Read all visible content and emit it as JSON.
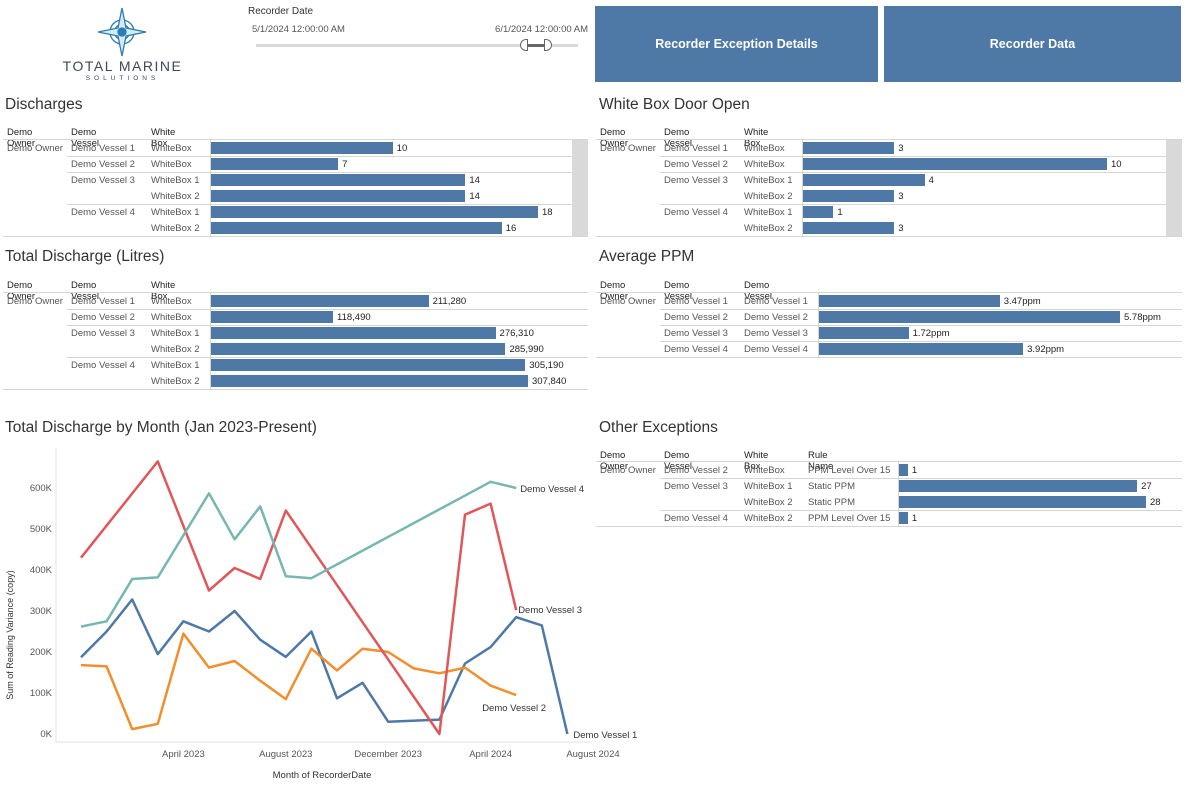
{
  "logo": {
    "text": "TOTAL MARINE",
    "subtext": "SOLUTIONS"
  },
  "filter": {
    "title": "Recorder Date",
    "start": "5/1/2024 12:00:00 AM",
    "end": "6/1/2024 12:00:00 AM"
  },
  "nav": {
    "exception_details": "Recorder Exception Details",
    "recorder_data": "Recorder Data"
  },
  "discharges": {
    "title": "Discharges",
    "headers": [
      "Demo Owner",
      "Demo Vessel",
      "White Box"
    ],
    "owner": "Demo Owner",
    "rows": [
      {
        "vessel": "Demo Vessel 1",
        "box": "WhiteBox",
        "value": 10,
        "label": "10"
      },
      {
        "vessel": "Demo Vessel 2",
        "box": "WhiteBox",
        "value": 7,
        "label": "7"
      },
      {
        "vessel": "Demo Vessel 3",
        "box": "WhiteBox 1",
        "value": 14,
        "label": "14"
      },
      {
        "vessel": "",
        "box": "WhiteBox 2",
        "value": 14,
        "label": "14"
      },
      {
        "vessel": "Demo Vessel 4",
        "box": "WhiteBox 1",
        "value": 18,
        "label": "18"
      },
      {
        "vessel": "",
        "box": "WhiteBox 2",
        "value": 16,
        "label": "16"
      }
    ]
  },
  "door_open": {
    "title": "White Box Door Open",
    "headers": [
      "Demo Owner",
      "Demo Vessel",
      "White Box"
    ],
    "owner": "Demo Owner",
    "rows": [
      {
        "vessel": "Demo Vessel 1",
        "box": "WhiteBox",
        "value": 3,
        "label": "3"
      },
      {
        "vessel": "Demo Vessel 2",
        "box": "WhiteBox",
        "value": 10,
        "label": "10"
      },
      {
        "vessel": "Demo Vessel 3",
        "box": "WhiteBox 1",
        "value": 4,
        "label": "4"
      },
      {
        "vessel": "",
        "box": "WhiteBox 2",
        "value": 3,
        "label": "3"
      },
      {
        "vessel": "Demo Vessel 4",
        "box": "WhiteBox 1",
        "value": 1,
        "label": "1"
      },
      {
        "vessel": "",
        "box": "WhiteBox 2",
        "value": 3,
        "label": "3"
      }
    ]
  },
  "total_discharge": {
    "title": "Total Discharge (Litres)",
    "headers": [
      "Demo Owner",
      "Demo Vessel",
      "White Box"
    ],
    "owner": "Demo Owner",
    "rows": [
      {
        "vessel": "Demo Vessel 1",
        "box": "WhiteBox",
        "value": 211280,
        "label": "211,280"
      },
      {
        "vessel": "Demo Vessel 2",
        "box": "WhiteBox",
        "value": 118490,
        "label": "118,490"
      },
      {
        "vessel": "Demo Vessel 3",
        "box": "WhiteBox 1",
        "value": 276310,
        "label": "276,310"
      },
      {
        "vessel": "",
        "box": "WhiteBox 2",
        "value": 285990,
        "label": "285,990"
      },
      {
        "vessel": "Demo Vessel 4",
        "box": "WhiteBox 1",
        "value": 305190,
        "label": "305,190"
      },
      {
        "vessel": "",
        "box": "WhiteBox 2",
        "value": 307840,
        "label": "307,840"
      }
    ]
  },
  "avg_ppm": {
    "title": "Average PPM",
    "headers": [
      "Demo Owner",
      "Demo Vessel",
      "Demo Vessel"
    ],
    "owner": "Demo Owner",
    "rows": [
      {
        "vessel": "Demo Vessel 1",
        "box": "Demo Vessel 1",
        "value": 3.47,
        "label": "3.47ppm"
      },
      {
        "vessel": "Demo Vessel 2",
        "box": "Demo Vessel 2",
        "value": 5.78,
        "label": "5.78ppm"
      },
      {
        "vessel": "Demo Vessel 3",
        "box": "Demo Vessel 3",
        "value": 1.72,
        "label": "1.72ppm"
      },
      {
        "vessel": "Demo Vessel 4",
        "box": "Demo Vessel 4",
        "value": 3.92,
        "label": "3.92ppm"
      }
    ]
  },
  "monthly": {
    "title": "Total Discharge by Month (Jan 2023-Present)"
  },
  "other_exceptions": {
    "title": "Other Exceptions",
    "headers": [
      "Demo Owner",
      "Demo Vessel",
      "White Box",
      "Rule Name"
    ],
    "owner": "Demo Owner",
    "rows": [
      {
        "vessel": "Demo Vessel 2",
        "box": "WhiteBox",
        "rule": "PPM Level Over 15",
        "value": 1,
        "label": "1"
      },
      {
        "vessel": "Demo Vessel 3",
        "box": "WhiteBox 1",
        "rule": "Static PPM",
        "value": 27,
        "label": "27"
      },
      {
        "vessel": "",
        "box": "WhiteBox 2",
        "rule": "Static PPM",
        "value": 28,
        "label": "28"
      },
      {
        "vessel": "Demo Vessel 4",
        "box": "WhiteBox 2",
        "rule": "PPM Level Over 15",
        "value": 1,
        "label": "1"
      }
    ]
  },
  "chart_data": {
    "type": "line",
    "title": "Total Discharge by Month (Jan 2023-Present)",
    "xlabel": "Month of RecorderDate",
    "ylabel": "Sum of Reading Variance (copy)",
    "ylim": [
      0,
      680000
    ],
    "y_ticks": [
      0,
      100000,
      200000,
      300000,
      400000,
      500000,
      600000
    ],
    "y_tick_labels": [
      "0K",
      "100K",
      "200K",
      "300K",
      "400K",
      "500K",
      "600K"
    ],
    "x_tick_labels": [
      "April 2023",
      "August 2023",
      "December 2023",
      "April 2024",
      "August 2024"
    ],
    "x_ticks": [
      "2023-04",
      "2023-08",
      "2023-12",
      "2024-04",
      "2024-08"
    ],
    "x": [
      "2022-12",
      "2023-01",
      "2023-02",
      "2023-03",
      "2023-04",
      "2023-05",
      "2023-06",
      "2023-07",
      "2023-08",
      "2023-09",
      "2023-10",
      "2023-11",
      "2023-12",
      "2024-01",
      "2024-02",
      "2024-03",
      "2024-04",
      "2024-05",
      "2024-06",
      "2024-07"
    ],
    "grid": false,
    "legend": "inline-end-labels",
    "colors": {
      "Demo Vessel 1": "#4e79a7",
      "Demo Vessel 2": "#f28e2b",
      "Demo Vessel 3": "#e15759",
      "Demo Vessel 4": "#76b7b2"
    },
    "series": [
      {
        "name": "Demo Vessel 1",
        "values": [
          187000,
          250000,
          328000,
          195000,
          275000,
          250000,
          300000,
          230000,
          188000,
          250000,
          87000,
          125000,
          30000,
          null,
          35000,
          172000,
          212000,
          285000,
          265000,
          0
        ]
      },
      {
        "name": "Demo Vessel 2",
        "values": [
          168000,
          165000,
          12000,
          25000,
          245000,
          162000,
          178000,
          130000,
          85000,
          208000,
          155000,
          208000,
          200000,
          160000,
          148000,
          162000,
          118000,
          95000,
          null,
          null
        ]
      },
      {
        "name": "Demo Vessel 3",
        "values": [
          430000,
          null,
          null,
          665000,
          null,
          350000,
          405000,
          378000,
          545000,
          null,
          null,
          null,
          null,
          null,
          0,
          535000,
          562000,
          302000,
          null,
          null
        ]
      },
      {
        "name": "Demo Vessel 4",
        "values": [
          262000,
          275000,
          378000,
          382000,
          null,
          587000,
          475000,
          555000,
          385000,
          380000,
          null,
          null,
          null,
          null,
          null,
          null,
          615000,
          600000,
          null,
          null
        ]
      }
    ]
  }
}
